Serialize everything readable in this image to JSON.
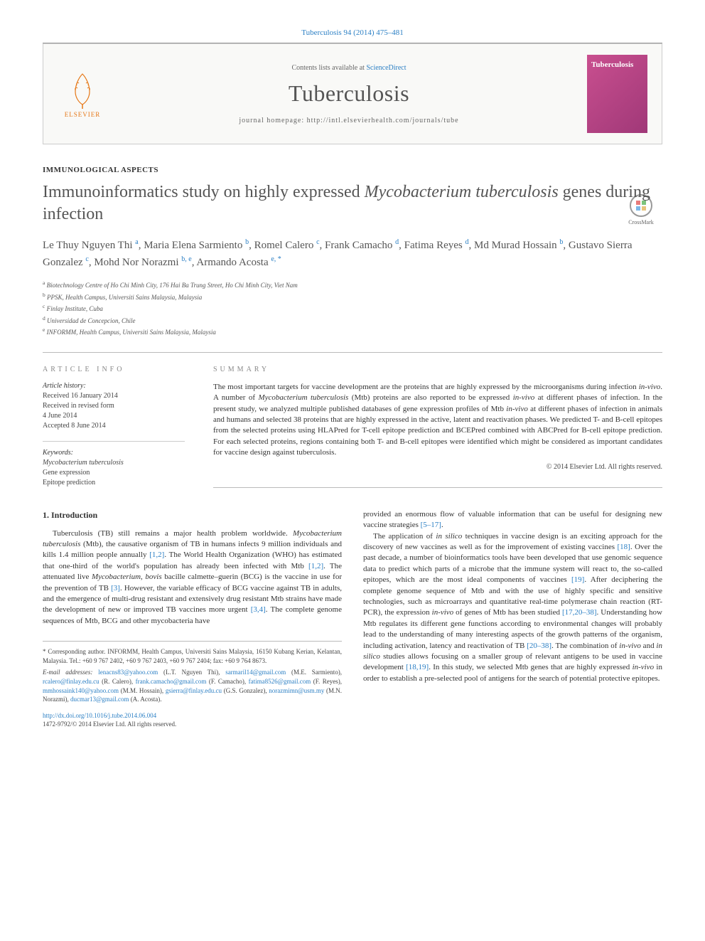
{
  "citation": "Tuberculosis 94 (2014) 475–481",
  "header": {
    "contents_prefix": "Contents lists available at ",
    "contents_link": "ScienceDirect",
    "journal_title": "Tuberculosis",
    "homepage_label": "journal homepage: http://intl.elsevierhealth.com/journals/tube",
    "elsevier": "ELSEVIER",
    "cover_title": "Tuberculosis"
  },
  "section_label": "IMMUNOLOGICAL ASPECTS",
  "title_html": "Immunoinformatics study on highly expressed <em>Mycobacterium tuberculosis</em> genes during infection",
  "crossmark": "CrossMark",
  "authors_html": "Le Thuy Nguyen Thi <sup>a</sup>, Maria Elena Sarmiento <sup>b</sup>, Romel Calero <sup>c</sup>, Frank Camacho <sup>d</sup>, Fatima Reyes <sup>d</sup>, Md Murad Hossain <sup>b</sup>, Gustavo Sierra Gonzalez <sup>c</sup>, Mohd Nor Norazmi <sup>b, e</sup>, Armando Acosta <sup>e, *</sup>",
  "affiliations": [
    {
      "sup": "a",
      "text": "Biotechnology Centre of Ho Chi Minh City, 176 Hai Ba Trung Street, Ho Chi Minh City, Viet Nam"
    },
    {
      "sup": "b",
      "text": "PPSK, Health Campus, Universiti Sains Malaysia, Malaysia"
    },
    {
      "sup": "c",
      "text": "Finlay Institute, Cuba"
    },
    {
      "sup": "d",
      "text": "Universidad de Concepcion, Chile"
    },
    {
      "sup": "e",
      "text": "INFORMM, Health Campus, Universiti Sains Malaysia, Malaysia"
    }
  ],
  "info": {
    "heading": "ARTICLE INFO",
    "history_heading": "Article history:",
    "history": [
      "Received 16 January 2014",
      "Received in revised form",
      "4 June 2014",
      "Accepted 8 June 2014"
    ],
    "keywords_heading": "Keywords:",
    "keywords": [
      "Mycobacterium tuberculosis",
      "Gene expression",
      "Epitope prediction"
    ]
  },
  "summary": {
    "heading": "SUMMARY",
    "text_html": "The most important targets for vaccine development are the proteins that are highly expressed by the microorganisms during infection <em>in-vivo</em>. A number of <em>Mycobacterium tuberculosis</em> (Mtb) proteins are also reported to be expressed <em>in-vivo</em> at different phases of infection. In the present study, we analyzed multiple published databases of gene expression profiles of Mtb <em>in-vivo</em> at different phases of infection in animals and humans and selected 38 proteins that are highly expressed in the active, latent and reactivation phases. We predicted T- and B-cell epitopes from the selected proteins using HLAPred for T-cell epitope prediction and BCEPred combined with ABCPred for B-cell epitope prediction. For each selected proteins, regions containing both T- and B-cell epitopes were identified which might be considered as important candidates for vaccine design against tuberculosis.",
    "copyright": "© 2014 Elsevier Ltd. All rights reserved."
  },
  "intro": {
    "heading": "1. Introduction",
    "para1_html": "Tuberculosis (TB) still remains a major health problem worldwide. <em>Mycobacterium tuberculosis</em> (Mtb), the causative organism of TB in humans infects 9 million individuals and kills 1.4 million people annually <a class='ref-link'>[1,2]</a>. The World Health Organization (WHO) has estimated that one-third of the world's population has already been infected with Mtb <a class='ref-link'>[1,2]</a>. The attenuated live <em>Mycobacterium, bovis</em> bacille calmette–guerin (BCG) is the vaccine in use for the prevention of TB <a class='ref-link'>[3]</a>. However, the variable efficacy of BCG vaccine against TB in adults, and the emergence of multi-drug resistant and extensively drug resistant Mtb strains have made the development of new or improved TB vaccines more urgent <a class='ref-link'>[3,4]</a>. The complete genome sequences of Mtb, BCG and other mycobacteria have",
    "para2_html": "provided an enormous flow of valuable information that can be useful for designing new vaccine strategies <a class='ref-link'>[5–17]</a>.",
    "para3_html": "The application of <em>in silico</em> techniques in vaccine design is an exciting approach for the discovery of new vaccines as well as for the improvement of existing vaccines <a class='ref-link'>[18]</a>. Over the past decade, a number of bioinformatics tools have been developed that use genomic sequence data to predict which parts of a microbe that the immune system will react to, the so-called epitopes, which are the most ideal components of vaccines <a class='ref-link'>[19]</a>. After deciphering the complete genome sequence of Mtb and with the use of highly specific and sensitive technologies, such as microarrays and quantitative real-time polymerase chain reaction (RT-PCR), the expression <em>in-vivo</em> of genes of Mtb has been studied <a class='ref-link'>[17,20–38]</a>. Understanding how Mtb regulates its different gene functions according to environmental changes will probably lead to the understanding of many interesting aspects of the growth patterns of the organism, including activation, latency and reactivation of TB <a class='ref-link'>[20–38]</a>. The combination of <em>in-vivo</em> and <em>in silico</em> studies allows focusing on a smaller group of relevant antigens to be used in vaccine development <a class='ref-link'>[18,19]</a>. In this study, we selected Mtb genes that are highly expressed <em>in-vivo</em> in order to establish a pre-selected pool of antigens for the search of potential protective epitopes."
  },
  "corr": {
    "text_html": "* Corresponding author. INFORMM, Health Campus, Universiti Sains Malaysia, 16150 Kubang Kerian, Kelantan, Malaysia. Tel.: +60 9 767 2402, +60 9 767 2403, +60 9 767 2404; fax: +60 9 764 8673.",
    "emails_label": "E-mail addresses:",
    "emails_html": "<a>lenacns83@yahoo.com</a> (L.T. Nguyen Thi), <a>sarmaril14@gmail.com</a> (M.E. Sarmiento), <a>rcalero@finlay.edu.cu</a> (R. Calero), <a>frank.camacho@gmail.com</a> (F. Camacho), <a>fatima8526@gmail.com</a> (F. Reyes), <a>mmhossaink140@yahoo.com</a> (M.M. Hossain), <a>gsierra@finlay.edu.cu</a> (G.S. Gonzalez), <a>norazmimn@usm.my</a> (M.N. Norazmi), <a>ducmar13@gmail.com</a> (A. Acosta)."
  },
  "doi": {
    "link": "http://dx.doi.org/10.1016/j.tube.2014.06.004",
    "issn": "1472-9792/© 2014 Elsevier Ltd. All rights reserved."
  },
  "colors": {
    "link": "#2b7fc4",
    "elsevier_orange": "#e67817",
    "cover_bg": "#c94f8f",
    "text": "#333333",
    "muted": "#666666",
    "border": "#bbbbbb"
  }
}
